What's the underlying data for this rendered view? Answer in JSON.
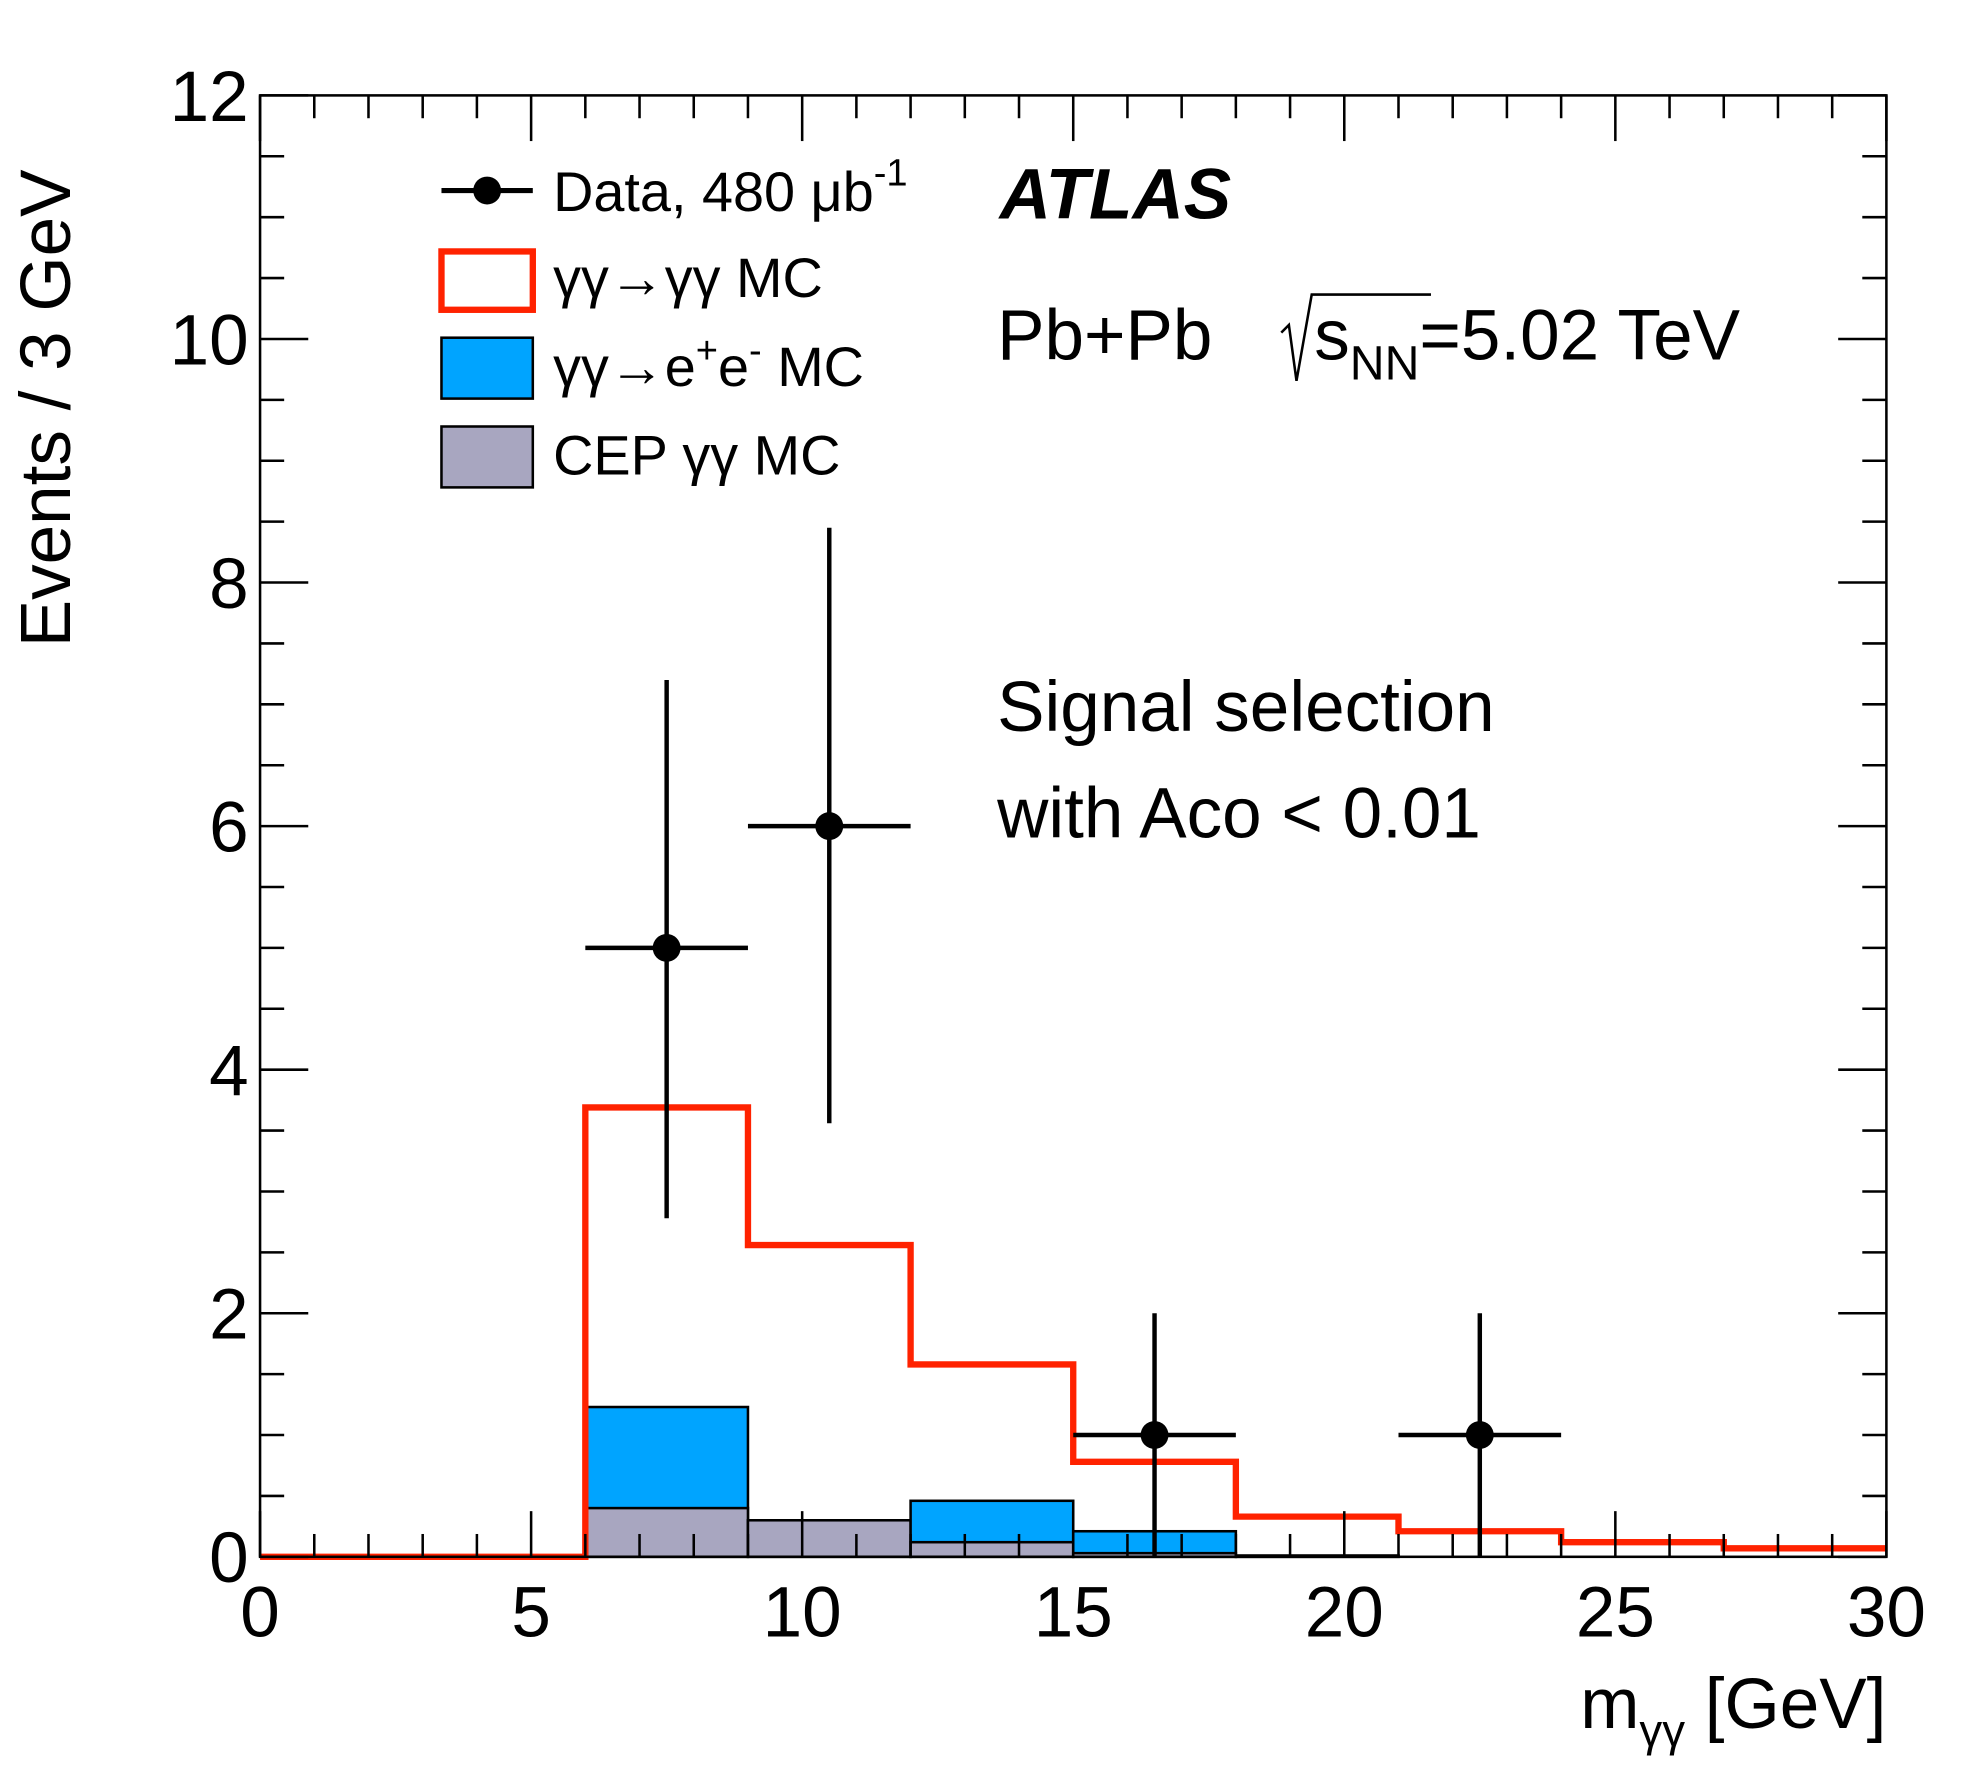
{
  "colors": {
    "signal": "#ff2200",
    "ee": "#00a4ff",
    "cep": "#a8a6c0",
    "data": "#000000"
  },
  "chart_data": {
    "type": "bar",
    "title": "",
    "xlabel": "m",
    "xlabel_sub": "γγ",
    "xlabel_unit": " [GeV]",
    "ylabel": "Events / 3 GeV",
    "xlim": [
      0,
      30
    ],
    "ylim": [
      0,
      12
    ],
    "x_ticks": [
      "0",
      "5",
      "10",
      "15",
      "20",
      "25",
      "30"
    ],
    "y_ticks": [
      "0",
      "2",
      "4",
      "6",
      "8",
      "10",
      "12"
    ],
    "bin_edges": [
      0,
      3,
      6,
      9,
      12,
      15,
      18,
      21,
      24,
      27,
      30
    ],
    "series": [
      {
        "name": "CEP γγ MC",
        "kind": "stacked-fill",
        "values": [
          0,
          0,
          0.4,
          0.3,
          0.12,
          0.03,
          0.01,
          0,
          0,
          0
        ]
      },
      {
        "name": "γγ→e⁺e⁻ MC",
        "kind": "stacked-fill",
        "values": [
          0,
          0,
          0.83,
          0,
          0.34,
          0.18,
          0,
          0,
          0,
          0
        ]
      },
      {
        "name": "γγ→γγ MC",
        "kind": "step-line",
        "values": [
          0,
          0,
          3.69,
          2.56,
          1.58,
          0.78,
          0.33,
          0.21,
          0.12,
          0.07
        ]
      },
      {
        "name": "Data, 480 μb⁻¹",
        "kind": "points",
        "x": [
          7.5,
          10.5,
          16.5,
          22.5
        ],
        "y": [
          5,
          6,
          1,
          1
        ],
        "yerr_low": [
          2.22,
          2.44,
          1,
          1
        ],
        "yerr_high": [
          2.2,
          2.45,
          1,
          1
        ],
        "xerr": 1.5
      }
    ],
    "legend": {
      "placement": "top-left",
      "entries": [
        {
          "label": "Data, 480 μb",
          "sup": "-1"
        },
        {
          "label": "γγ→γγ MC"
        },
        {
          "label": "γγ→e",
          "sup": "+",
          "mid": "e",
          "sup2": "-",
          "tail": " MC"
        },
        {
          "label": "CEP γγ MC"
        }
      ]
    },
    "annotations": {
      "experiment": "ATLAS",
      "system": "Pb+Pb",
      "energy_s": "s",
      "energy_sub": "NN",
      "energy_val": "=5.02 TeV",
      "selection_1": "Signal selection",
      "selection_2": "with Aco < 0.01"
    }
  }
}
